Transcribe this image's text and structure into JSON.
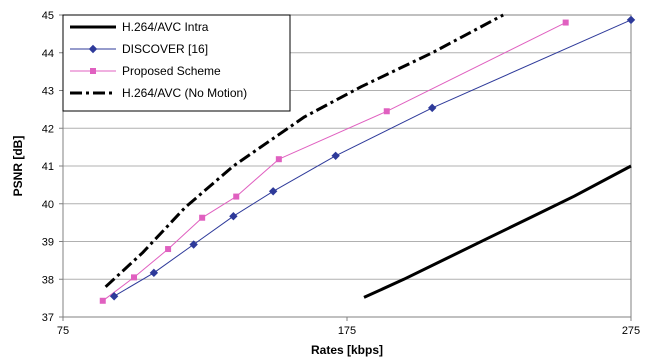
{
  "chart_data": {
    "type": "line",
    "title": "",
    "xlabel": "Rates [kbps]",
    "ylabel": "PSNR [dB]",
    "xlim": [
      75,
      275
    ],
    "ylim": [
      37,
      45
    ],
    "x_ticks": [
      75,
      175,
      275
    ],
    "y_ticks": [
      37,
      38,
      39,
      40,
      41,
      42,
      43,
      44,
      45
    ],
    "grid": "horizontal",
    "legend_position": "top-left",
    "series": [
      {
        "name": "H.264/AVC Intra",
        "color": "#000000",
        "style": "solid-thick",
        "marker": "none",
        "points": [
          [
            181,
            37.52
          ],
          [
            195,
            38.0
          ],
          [
            210,
            38.55
          ],
          [
            225,
            39.1
          ],
          [
            240,
            39.65
          ],
          [
            255,
            40.2
          ],
          [
            275,
            41.0
          ]
        ]
      },
      {
        "name": "DISCOVER [16]",
        "color": "#2e3a9a",
        "style": "solid",
        "marker": "diamond",
        "points": [
          [
            93,
            37.55
          ],
          [
            107,
            38.17
          ],
          [
            121,
            38.92
          ],
          [
            135,
            39.67
          ],
          [
            149,
            40.33
          ],
          [
            171,
            41.27
          ],
          [
            205,
            42.54
          ],
          [
            275,
            44.87
          ]
        ]
      },
      {
        "name": "Proposed Scheme",
        "color": "#e060c0",
        "style": "solid",
        "marker": "square",
        "points": [
          [
            89,
            37.43
          ],
          [
            100,
            38.05
          ],
          [
            112,
            38.8
          ],
          [
            124,
            39.63
          ],
          [
            136,
            40.19
          ],
          [
            151,
            41.18
          ],
          [
            189,
            42.45
          ],
          [
            252,
            44.8
          ]
        ]
      },
      {
        "name": "H.264/AVC (No Motion)",
        "color": "#000000",
        "style": "dash-dot-thick",
        "marker": "none",
        "points": [
          [
            90,
            37.8
          ],
          [
            103,
            38.7
          ],
          [
            118,
            39.9
          ],
          [
            135,
            41.0
          ],
          [
            160,
            42.3
          ],
          [
            180,
            43.1
          ],
          [
            205,
            44.0
          ],
          [
            230,
            45.0
          ]
        ]
      }
    ]
  }
}
